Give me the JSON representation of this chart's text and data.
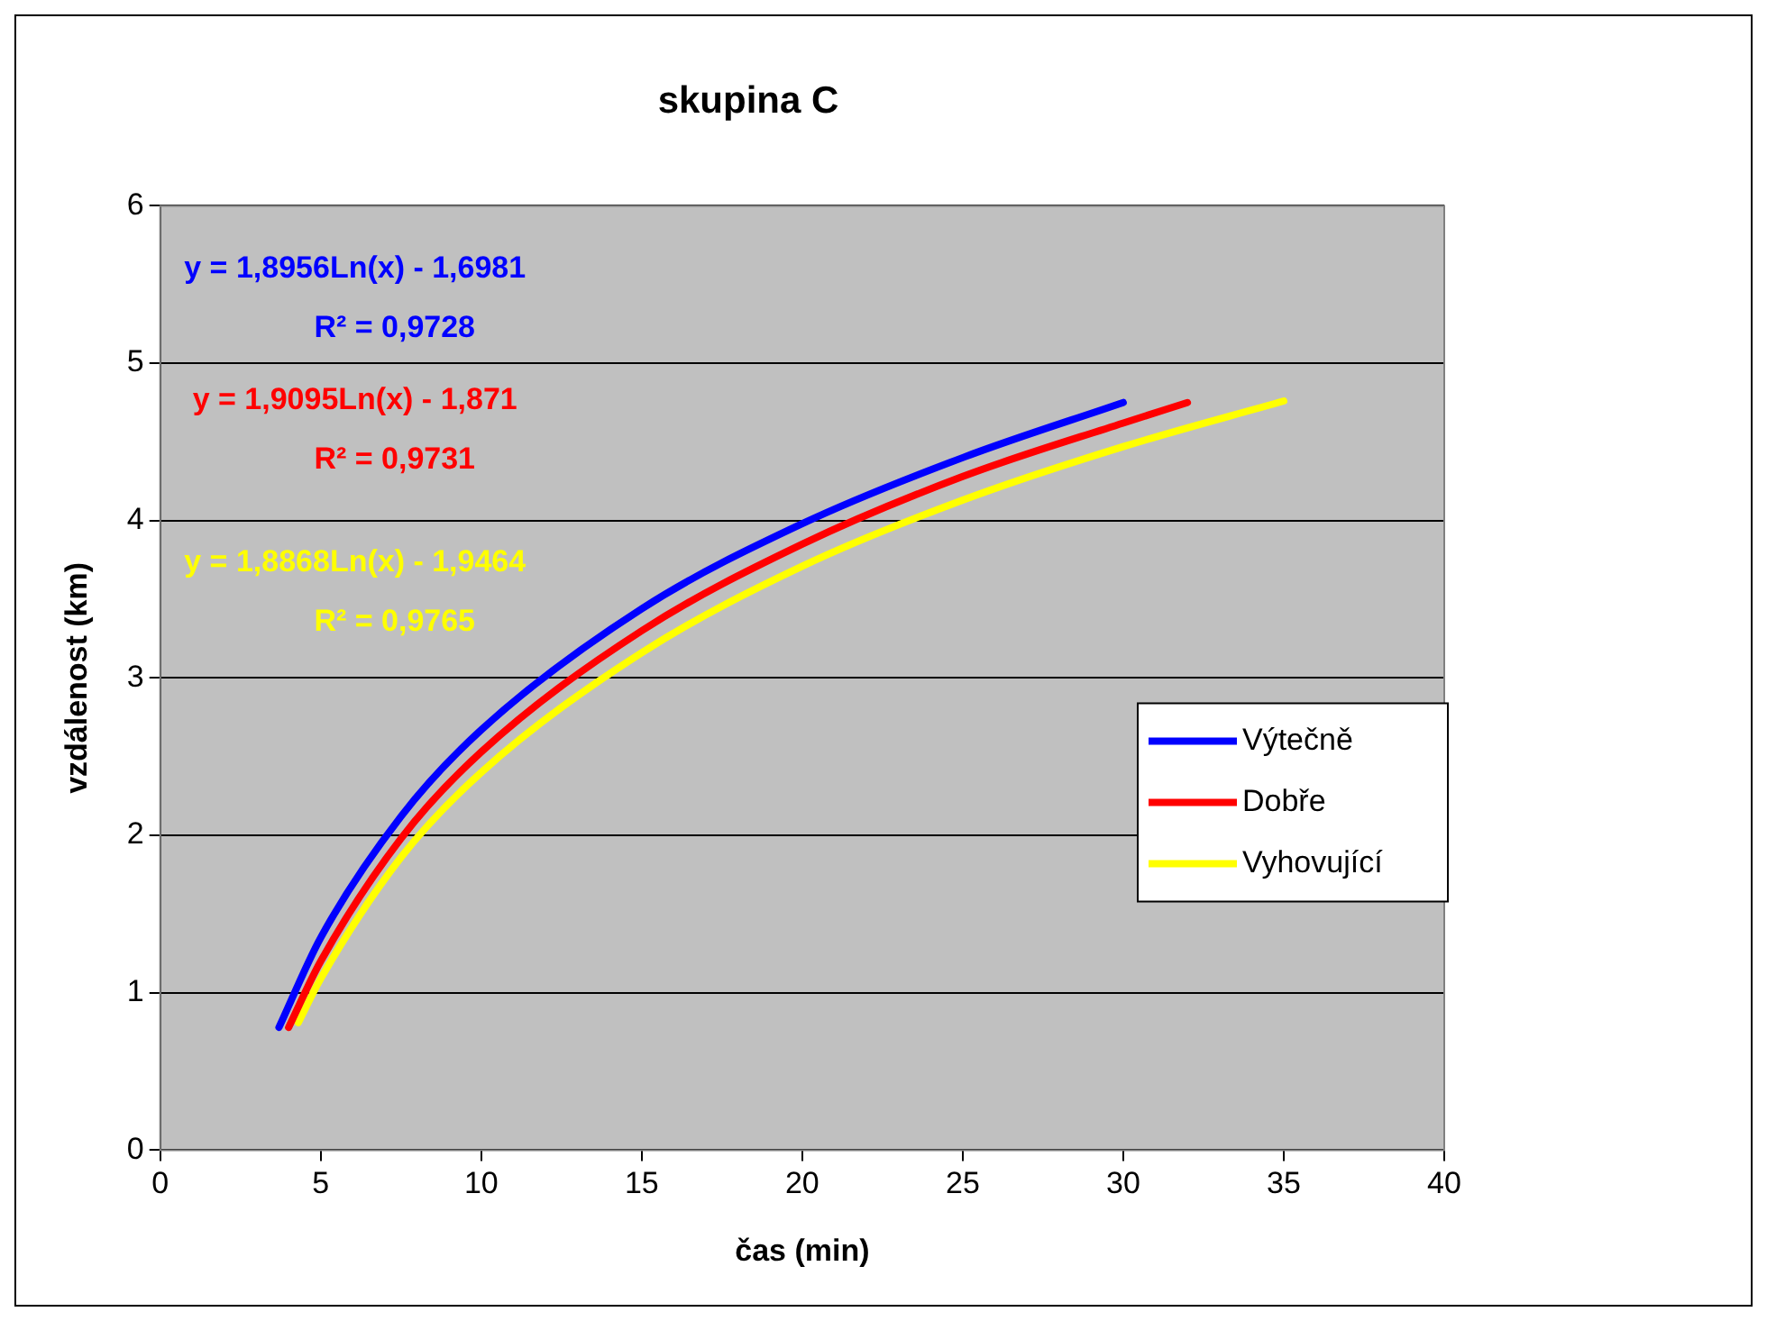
{
  "chart_data": {
    "type": "line",
    "title": "skupina C",
    "xlabel": "čas (min)",
    "ylabel": "vzdálenost (km)",
    "xlim": [
      0,
      40
    ],
    "xticks": [
      0,
      5,
      10,
      15,
      20,
      25,
      30,
      35,
      40
    ],
    "ylim": [
      0,
      6
    ],
    "yticks": [
      0,
      1,
      2,
      3,
      4,
      5,
      6
    ],
    "grid": "y",
    "legend": "right",
    "marker": "none",
    "line_style": "solid",
    "series": [
      {
        "name": "Výtečně",
        "color": "#0000ff",
        "x": [
          3.7,
          5,
          7.5,
          10,
          15,
          20,
          25,
          30
        ],
        "values": [
          0.78,
          1.35,
          2.12,
          2.67,
          3.44,
          3.98,
          4.4,
          4.75
        ]
      },
      {
        "name": "Dobře",
        "color": "#ff0000",
        "x": [
          4,
          5,
          7.5,
          10,
          15,
          20,
          25,
          30,
          32
        ],
        "values": [
          0.78,
          1.2,
          1.98,
          2.53,
          3.3,
          3.85,
          4.28,
          4.62,
          4.75
        ]
      },
      {
        "name": "Vyhovující",
        "color": "#ffff00",
        "x": [
          4.3,
          5,
          7.5,
          10,
          15,
          20,
          25,
          30,
          35
        ],
        "values": [
          0.81,
          1.09,
          1.86,
          2.4,
          3.16,
          3.71,
          4.13,
          4.47,
          4.76
        ]
      }
    ],
    "annotations": [
      "y = 1,8956Ln(x) - 1,6981\nR² = 0,9728",
      "y = 1,9095Ln(x) - 1,871\nR² = 0,9731",
      "y = 1,8868Ln(x) - 1,9464\nR² = 0,9765"
    ]
  }
}
